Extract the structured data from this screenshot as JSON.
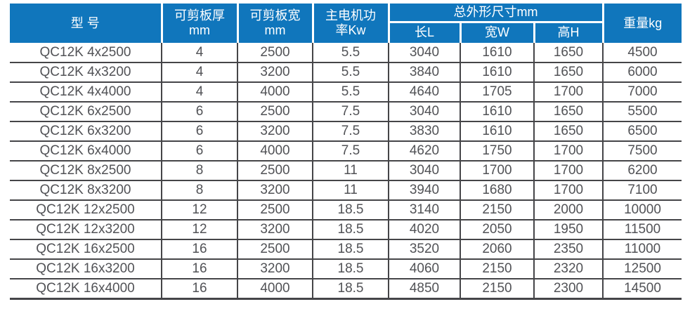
{
  "colors": {
    "header_bg": "#1076bc",
    "header_text": "#ffffff",
    "cell_text": "#515256",
    "grid_line": "#454548",
    "page_bg": "#ffffff"
  },
  "table": {
    "header": {
      "model": "型 号",
      "thickness_line1": "可剪板厚",
      "thickness_line2": "mm",
      "sheet_width_line1": "可剪板宽",
      "sheet_width_line2": "mm",
      "power_line1": "主电机功",
      "power_line2": "率Kw",
      "dimensions_group": "总外形尺寸mm",
      "dim_length": "长L",
      "dim_width": "宽W",
      "dim_height": "高H",
      "weight": "重量kg"
    },
    "row_keys": [
      "model",
      "thickness",
      "sheet_width",
      "power",
      "length",
      "width",
      "height",
      "weight"
    ],
    "rows": [
      {
        "model": "QC12K 4x2500",
        "thickness": "4",
        "sheet_width": "2500",
        "power": "5.5",
        "length": "3040",
        "width": "1610",
        "height": "1650",
        "weight": "4500"
      },
      {
        "model": "QC12K 4x3200",
        "thickness": "4",
        "sheet_width": "3200",
        "power": "5.5",
        "length": "3840",
        "width": "1610",
        "height": "1650",
        "weight": "6000"
      },
      {
        "model": "QC12K 4x4000",
        "thickness": "4",
        "sheet_width": "4000",
        "power": "5.5",
        "length": "4640",
        "width": "1705",
        "height": "1700",
        "weight": "7000"
      },
      {
        "model": "QC12K 6x2500",
        "thickness": "6",
        "sheet_width": "2500",
        "power": "7.5",
        "length": "3040",
        "width": "1610",
        "height": "1650",
        "weight": "5500"
      },
      {
        "model": "QC12K 6x3200",
        "thickness": "6",
        "sheet_width": "3200",
        "power": "7.5",
        "length": "3830",
        "width": "1610",
        "height": "1650",
        "weight": "6500"
      },
      {
        "model": "QC12K 6x4000",
        "thickness": "6",
        "sheet_width": "4000",
        "power": "7.5",
        "length": "4620",
        "width": "1750",
        "height": "1700",
        "weight": "7500"
      },
      {
        "model": "QC12K 8x2500",
        "thickness": "8",
        "sheet_width": "2500",
        "power": "11",
        "length": "3040",
        "width": "1700",
        "height": "1700",
        "weight": "6200"
      },
      {
        "model": "QC12K 8x3200",
        "thickness": "8",
        "sheet_width": "3200",
        "power": "11",
        "length": "3940",
        "width": "1680",
        "height": "1700",
        "weight": "7100"
      },
      {
        "model": "QC12K 12x2500",
        "thickness": "12",
        "sheet_width": "2500",
        "power": "18.5",
        "length": "3140",
        "width": "2150",
        "height": "2000",
        "weight": "10000"
      },
      {
        "model": "QC12K 12x3200",
        "thickness": "12",
        "sheet_width": "3200",
        "power": "18.5",
        "length": "4020",
        "width": "2050",
        "height": "1950",
        "weight": "11500"
      },
      {
        "model": "QC12K 16x2500",
        "thickness": "16",
        "sheet_width": "2500",
        "power": "18.5",
        "length": "3520",
        "width": "2060",
        "height": "2350",
        "weight": "11000"
      },
      {
        "model": "QC12K 16x3200",
        "thickness": "16",
        "sheet_width": "3200",
        "power": "18.5",
        "length": "4060",
        "width": "2150",
        "height": "2320",
        "weight": "12500"
      },
      {
        "model": "QC12K 16x4000",
        "thickness": "16",
        "sheet_width": "4000",
        "power": "18.5",
        "length": "4850",
        "width": "2150",
        "height": "2300",
        "weight": "14500"
      }
    ]
  }
}
